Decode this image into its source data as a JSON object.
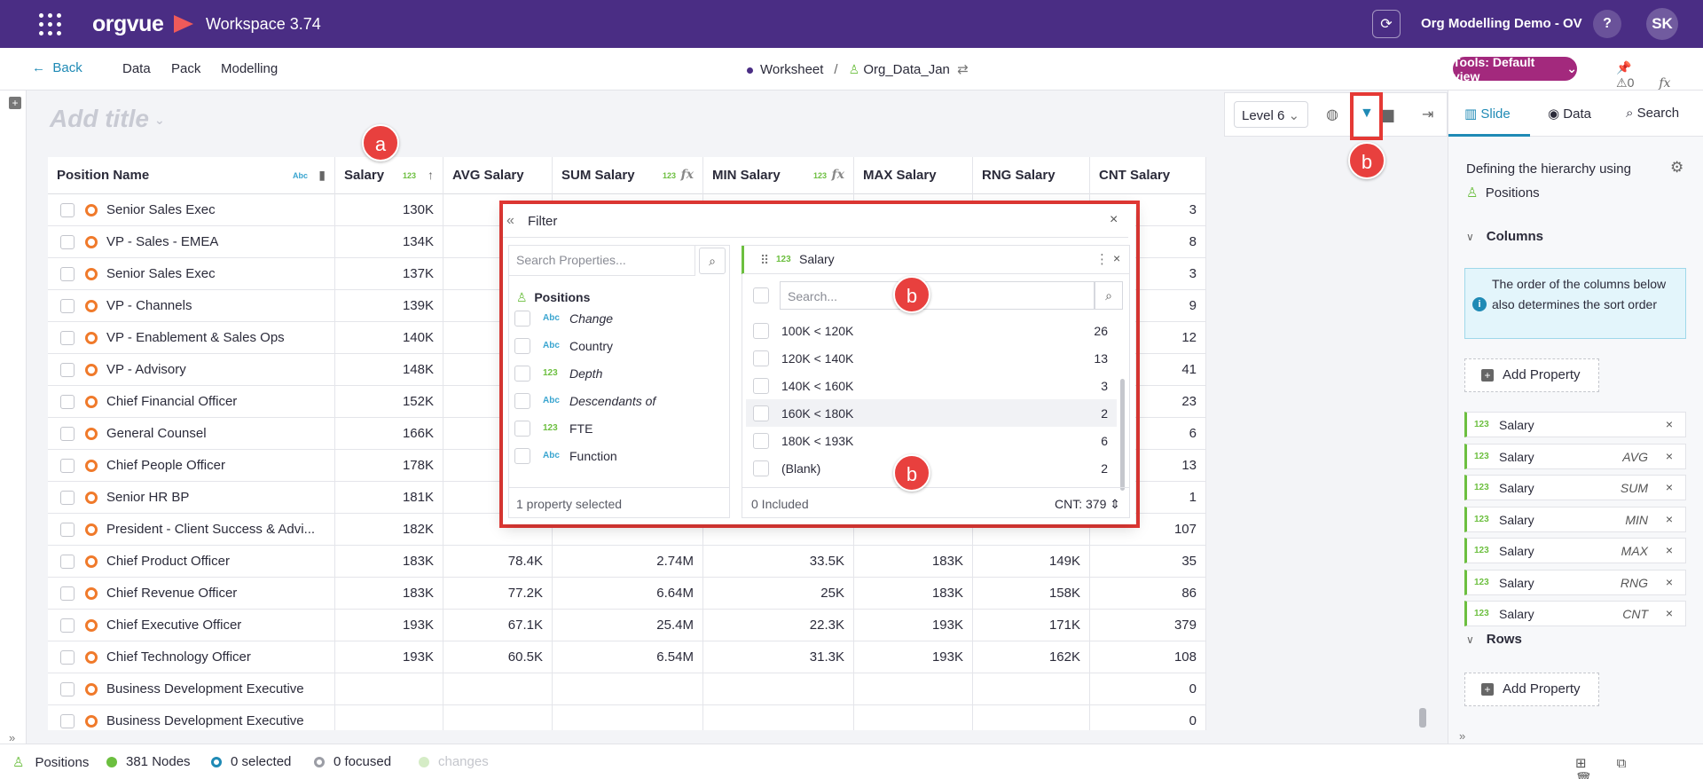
{
  "app": {
    "logo_text": "orgvue",
    "workspace_label": "Workspace 3.74",
    "demo_name": "Org Modelling Demo - OV",
    "help_label": "?",
    "user_initials": "SK"
  },
  "nav": {
    "back_label": "Back",
    "menu": [
      "Data",
      "Pack",
      "Modelling"
    ],
    "breadcrumb_worksheet": "Worksheet",
    "breadcrumb_sep": "/",
    "breadcrumb_dataset": "Org_Data_Jan",
    "tools_label": "Tools: Default view",
    "alert_count": "0",
    "fx_label": "fx"
  },
  "view": {
    "title_placeholder": "Add title",
    "level_label": "Level 6"
  },
  "table": {
    "columns": [
      {
        "label": "Position Name",
        "tag": "Abc"
      },
      {
        "label": "Salary",
        "tag": "123"
      },
      {
        "label": "AVG Salary"
      },
      {
        "label": "SUM Salary",
        "tag": "123",
        "fx": "fx"
      },
      {
        "label": "MIN Salary",
        "tag": "123",
        "fx": "fx"
      },
      {
        "label": "MAX Salary"
      },
      {
        "label": "RNG Salary"
      },
      {
        "label": "CNT Salary"
      }
    ],
    "rows": [
      {
        "name": "Senior Sales Exec",
        "cells": [
          "130K",
          "",
          "",
          "",
          "",
          "",
          "3"
        ]
      },
      {
        "name": "VP - Sales - EMEA",
        "cells": [
          "134K",
          "",
          "",
          "",
          "",
          "",
          "8"
        ]
      },
      {
        "name": "Senior Sales Exec",
        "cells": [
          "137K",
          "",
          "",
          "",
          "",
          "",
          "3"
        ]
      },
      {
        "name": "VP - Channels",
        "cells": [
          "139K",
          "",
          "",
          "",
          "",
          "",
          "9"
        ]
      },
      {
        "name": "VP - Enablement & Sales Ops",
        "cells": [
          "140K",
          "",
          "",
          "",
          "",
          "",
          "12"
        ]
      },
      {
        "name": "VP - Advisory",
        "cells": [
          "148K",
          "",
          "",
          "",
          "",
          "",
          "41"
        ]
      },
      {
        "name": "Chief Financial Officer",
        "cells": [
          "152K",
          "",
          "",
          "",
          "",
          "",
          "23"
        ]
      },
      {
        "name": "General Counsel",
        "cells": [
          "166K",
          "",
          "",
          "",
          "",
          "",
          "6"
        ]
      },
      {
        "name": "Chief People Officer",
        "cells": [
          "178K",
          "",
          "",
          "",
          "",
          "",
          "13"
        ]
      },
      {
        "name": "Senior HR BP",
        "cells": [
          "181K",
          "",
          "",
          "",
          "",
          "",
          "1"
        ]
      },
      {
        "name": "President -  Client Success & Advi...",
        "cells": [
          "182K",
          "",
          "",
          "",
          "",
          "",
          "107"
        ]
      },
      {
        "name": "Chief Product Officer",
        "cells": [
          "183K",
          "78.4K",
          "2.74M",
          "33.5K",
          "183K",
          "149K",
          "35"
        ]
      },
      {
        "name": "Chief Revenue Officer",
        "cells": [
          "183K",
          "77.2K",
          "6.64M",
          "25K",
          "183K",
          "158K",
          "86"
        ]
      },
      {
        "name": "Chief Executive Officer",
        "cells": [
          "193K",
          "67.1K",
          "25.4M",
          "22.3K",
          "193K",
          "171K",
          "379"
        ]
      },
      {
        "name": "Chief Technology Officer",
        "cells": [
          "193K",
          "60.5K",
          "6.54M",
          "31.3K",
          "193K",
          "162K",
          "108"
        ]
      },
      {
        "name": "Business Development Executive",
        "cells": [
          "",
          "",
          "",
          "",
          "",
          "",
          "0"
        ]
      },
      {
        "name": "Business Development Executive",
        "cells": [
          "",
          "",
          "",
          "",
          "",
          "",
          "0"
        ]
      }
    ]
  },
  "callouts": {
    "a": "a",
    "b": "b"
  },
  "filter": {
    "title": "Filter",
    "search_placeholder": "Search Properties...",
    "group_label": "Positions",
    "properties": [
      {
        "type": "Abc",
        "label": "Change",
        "italic": true
      },
      {
        "type": "Abc",
        "label": "Country",
        "italic": false
      },
      {
        "type": "123",
        "label": "Depth",
        "italic": true
      },
      {
        "type": "Abc",
        "label": "Descendants of",
        "italic": true
      },
      {
        "type": "123",
        "label": "FTE",
        "italic": false
      },
      {
        "type": "Abc",
        "label": "Function",
        "italic": false
      }
    ],
    "selected_summary": "1 property selected",
    "field": {
      "tag": "123",
      "title": "Salary",
      "search_placeholder": "Search...",
      "buckets": [
        {
          "label": "100K < 120K",
          "count": "26"
        },
        {
          "label": "120K < 140K",
          "count": "13"
        },
        {
          "label": "140K < 160K",
          "count": "3"
        },
        {
          "label": "160K < 180K",
          "count": "2"
        },
        {
          "label": "180K < 193K",
          "count": "6"
        },
        {
          "label": "(Blank)",
          "count": "2"
        }
      ],
      "included": "0 Included",
      "cnt": "CNT: 379"
    }
  },
  "right_panel": {
    "tabs": [
      "Slide",
      "Data",
      "Search"
    ],
    "defining_label": "Defining the hierarchy using",
    "hierarchy": "Positions",
    "columns_heading": "Columns",
    "info_text": "The order of the columns below also determines the sort order",
    "add_property_label": "Add Property",
    "column_items": [
      {
        "tag": "123",
        "name": "Salary",
        "agg": ""
      },
      {
        "tag": "123",
        "name": "Salary",
        "agg": "AVG"
      },
      {
        "tag": "123",
        "name": "Salary",
        "agg": "SUM"
      },
      {
        "tag": "123",
        "name": "Salary",
        "agg": "MIN"
      },
      {
        "tag": "123",
        "name": "Salary",
        "agg": "MAX"
      },
      {
        "tag": "123",
        "name": "Salary",
        "agg": "RNG"
      },
      {
        "tag": "123",
        "name": "Salary",
        "agg": "CNT"
      }
    ],
    "rows_heading": "Rows"
  },
  "status": {
    "positions": "Positions",
    "nodes": "381 Nodes",
    "selected": "0 selected",
    "focused": "0 focused",
    "changes": "changes"
  },
  "colors": {
    "brand_purple": "#4a2d84",
    "accent_blue": "#1f8ab5",
    "tools_magenta": "#a3297d",
    "annotation_red": "#e53935",
    "number_green": "#6cbf3f",
    "node_orange": "#f07a2b"
  }
}
